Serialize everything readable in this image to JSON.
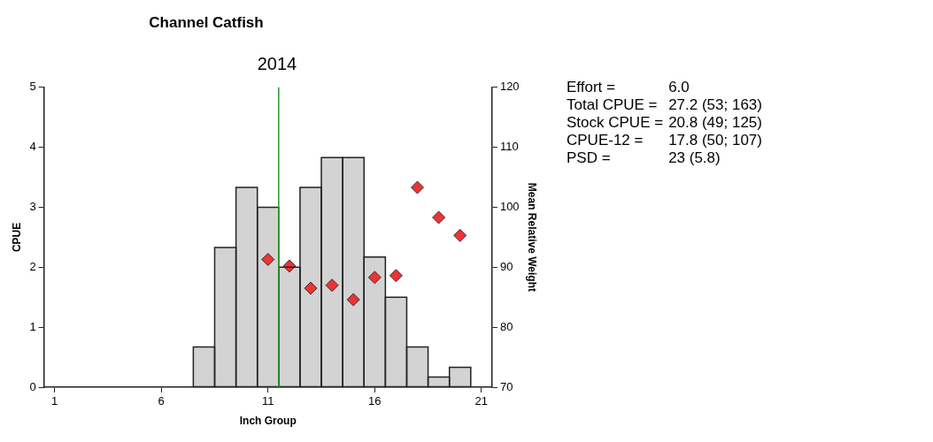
{
  "chart_data": {
    "type": "histogram",
    "title": "Channel Catfish",
    "subtitle": "2014",
    "xlabel": "Inch Group",
    "ylabel": "CPUE",
    "y2label": "Mean Relative Weight",
    "color": "#d3d3d3",
    "bins": [
      7.5,
      8.5,
      9.5,
      10.5,
      11.5,
      12.5,
      13.5,
      14.5,
      15.5,
      16.5,
      17.5,
      18.5,
      19.5,
      20.5
    ],
    "values": [
      0.67,
      2.33,
      3.33,
      3.0,
      2.0,
      3.33,
      3.83,
      3.83,
      2.17,
      1.5,
      0.67,
      0.17,
      0.33
    ],
    "series": [
      {
        "type": "scatter",
        "axis": "y2",
        "color": "#ee3333",
        "marker": "diamond",
        "x": [
          11,
          12,
          13,
          14,
          15,
          16,
          17,
          18,
          19,
          20
        ],
        "values": [
          91.3,
          90.2,
          86.5,
          87.0,
          84.6,
          88.3,
          88.6,
          103.3,
          98.3,
          95.3
        ]
      }
    ],
    "xlim": [
      0.5,
      21.5
    ],
    "xticks": [
      1,
      6,
      11,
      16,
      21
    ],
    "ylim": [
      0,
      5
    ],
    "yticks": [
      0,
      1,
      2,
      3,
      4,
      5
    ],
    "y2lim": [
      70,
      120
    ],
    "y2ticks": [
      70,
      80,
      90,
      100,
      110,
      120
    ],
    "ref_lines": [
      {
        "axis": "x",
        "value": 11.5,
        "color": "#2a9a2a"
      }
    ],
    "grid": false,
    "legend": false,
    "annotations": [
      "Effort =",
      "6.0",
      "Total CPUE =",
      "27.2 (53; 163)",
      "Stock CPUE =",
      "20.8 (49; 125)",
      "CPUE-12 =",
      "17.8 (50; 107)",
      "PSD =",
      "23 (5.8)"
    ]
  }
}
